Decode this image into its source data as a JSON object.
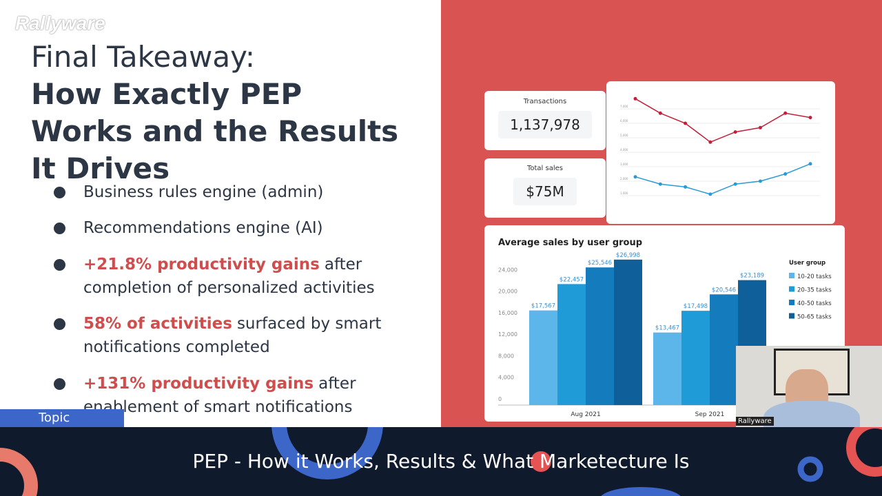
{
  "logo": "Rallyware",
  "title": {
    "line1": "Final Takeaway:",
    "bold": [
      "How Exactly PEP",
      "Works and the Results",
      "It Drives"
    ]
  },
  "bullets": [
    {
      "rest": [
        "Business rules engine (admin)"
      ]
    },
    {
      "rest": [
        "Recommendations engine (AI)"
      ]
    },
    {
      "highlight": "+21.8% productivity gains",
      "rest": [
        "after",
        "completion of personalized activities"
      ]
    },
    {
      "highlight": "58% of activities",
      "rest": [
        "surfaced by smart",
        "notifications completed"
      ]
    },
    {
      "highlight": "+131% productivity gains",
      "rest": [
        "after",
        "enablement of smart notifications"
      ]
    }
  ],
  "dashboard": {
    "transactions": {
      "label": "Transactions",
      "value": "1,137,978"
    },
    "total_sales": {
      "label": "Total sales",
      "value": "$75M"
    }
  },
  "chart_data": [
    {
      "type": "line",
      "categories": [
        null,
        null,
        null,
        null,
        null,
        null,
        null,
        null
      ],
      "series": [
        {
          "color": "#c21f3a",
          "values": [
            7700,
            6700,
            6000,
            4700,
            5400,
            5700,
            6700,
            6400
          ]
        },
        {
          "color": "#2a9ad6",
          "values": [
            2300,
            1800,
            1600,
            1100,
            1800,
            2000,
            2500,
            3200
          ]
        }
      ],
      "ylim": [
        0,
        8000
      ],
      "yticks": [
        {
          "value": 1000,
          "label": "1,000"
        },
        {
          "value": 2000,
          "label": "2,000"
        },
        {
          "value": 3000,
          "label": "3,000"
        },
        {
          "value": 4000,
          "label": "4,000"
        },
        {
          "value": 5000,
          "label": "5,000"
        },
        {
          "value": 6000,
          "label": "6,000"
        },
        {
          "value": 7000,
          "label": "7,000"
        }
      ],
      "grid": true
    },
    {
      "type": "bar",
      "title": "Average sales by user group",
      "legend_title": "User group",
      "categories": [
        "Aug 2021",
        "Sep 2021"
      ],
      "series": [
        {
          "name": "10-20 tasks",
          "color": "#5cb6ea",
          "values": [
            17567,
            13467
          ],
          "value_labels": [
            "$17,567",
            "$13,467"
          ]
        },
        {
          "name": "20-35 tasks",
          "color": "#1f9bd8",
          "values": [
            22457,
            17498
          ],
          "value_labels": [
            "$22,457",
            "$17,498"
          ]
        },
        {
          "name": "40-50 tasks",
          "color": "#147cbc",
          "values": [
            25546,
            20546
          ],
          "value_labels": [
            "$25,546",
            "$20,546"
          ]
        },
        {
          "name": "50-65 tasks",
          "color": "#0f609a",
          "values": [
            26998,
            23189
          ],
          "value_labels": [
            "$26,998",
            "$23,189"
          ]
        }
      ],
      "ylim": [
        0,
        28000
      ],
      "yticks": [
        0,
        {
          "value": 4000,
          "label": "4,000"
        },
        {
          "value": 8000,
          "label": "8,000"
        },
        {
          "value": 12000,
          "label": "12,000"
        },
        {
          "value": 16000,
          "label": "16,000"
        },
        {
          "value": 20000,
          "label": "20,000"
        },
        {
          "value": 24000,
          "label": "24,000"
        }
      ],
      "legend": "right"
    }
  ],
  "webcam_label": "Rallyware",
  "topic_tab": "Topic",
  "banner": "PEP - How it Works, Results & What Marketecture Is"
}
